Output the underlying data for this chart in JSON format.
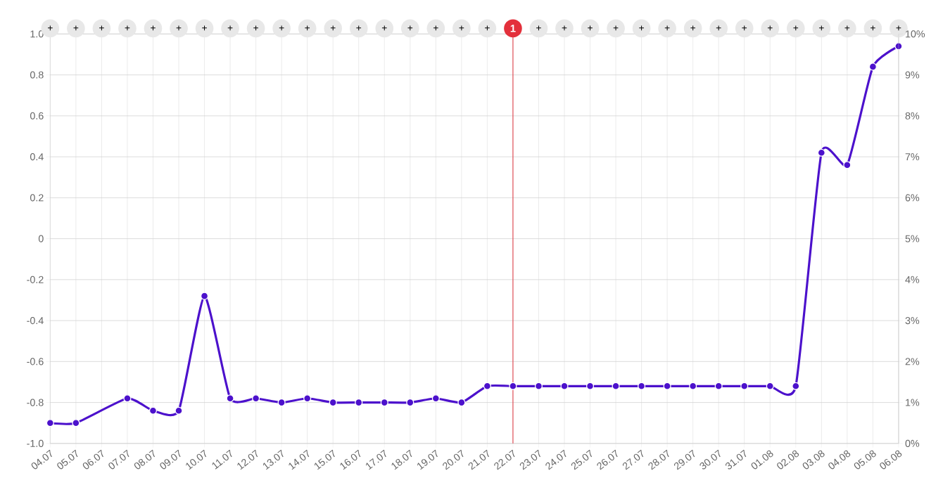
{
  "chart_data": {
    "type": "line",
    "categories": [
      "04.07",
      "05.07",
      "06.07",
      "07.07",
      "08.07",
      "09.07",
      "10.07",
      "11.07",
      "12.07",
      "13.07",
      "14.07",
      "15.07",
      "16.07",
      "17.07",
      "18.07",
      "19.07",
      "20.07",
      "21.07",
      "22.07",
      "23.07",
      "24.07",
      "25.07",
      "26.07",
      "27.07",
      "28.07",
      "29.07",
      "30.07",
      "31.07",
      "01.08",
      "02.08",
      "03.08",
      "04.08",
      "05.08",
      "06.08"
    ],
    "values": [
      -0.9,
      -0.9,
      null,
      -0.78,
      -0.84,
      -0.84,
      -0.28,
      -0.78,
      -0.78,
      -0.8,
      -0.78,
      -0.8,
      -0.8,
      -0.8,
      -0.8,
      -0.78,
      -0.8,
      -0.72,
      -0.72,
      -0.72,
      -0.72,
      -0.72,
      -0.72,
      -0.72,
      -0.72,
      -0.72,
      -0.72,
      -0.72,
      -0.72,
      -0.72,
      0.42,
      0.36,
      0.84,
      0.94
    ],
    "color": "#4c11cc",
    "marker": "circle",
    "line_style": "solid",
    "grid": true,
    "ylim": [
      -1,
      1
    ],
    "yticks": [
      {
        "value": -1,
        "label": "-1.0"
      },
      -0.8,
      -0.6,
      -0.4,
      -0.2,
      0,
      0.2,
      0.4,
      0.6,
      0.8,
      {
        "value": 1,
        "label": "1.0"
      }
    ],
    "y2lim": [
      0,
      10
    ],
    "y2ticks": [
      {
        "value": 0,
        "label": "0%"
      },
      {
        "value": 1,
        "label": "1%"
      },
      {
        "value": 2,
        "label": "2%"
      },
      {
        "value": 3,
        "label": "3%"
      },
      {
        "value": 4,
        "label": "4%"
      },
      {
        "value": 5,
        "label": "5%"
      },
      {
        "value": 6,
        "label": "6%"
      },
      {
        "value": 7,
        "label": "7%"
      },
      {
        "value": 8,
        "label": "8%"
      },
      {
        "value": 9,
        "label": "9%"
      },
      {
        "value": 10,
        "label": "10%"
      }
    ],
    "ref_lines": [
      {
        "axis": "x",
        "value": "22.07",
        "label": "1",
        "color": "#e3303b"
      }
    ],
    "annotations": [
      {
        "text": "+",
        "x": "04.07"
      },
      {
        "text": "+",
        "x": "05.07"
      },
      {
        "text": "+",
        "x": "06.07"
      },
      {
        "text": "+",
        "x": "07.07"
      },
      {
        "text": "+",
        "x": "08.07"
      },
      {
        "text": "+",
        "x": "09.07"
      },
      {
        "text": "+",
        "x": "10.07"
      },
      {
        "text": "+",
        "x": "11.07"
      },
      {
        "text": "+",
        "x": "12.07"
      },
      {
        "text": "+",
        "x": "13.07"
      },
      {
        "text": "+",
        "x": "14.07"
      },
      {
        "text": "+",
        "x": "15.07"
      },
      {
        "text": "+",
        "x": "16.07"
      },
      {
        "text": "+",
        "x": "17.07"
      },
      {
        "text": "+",
        "x": "18.07"
      },
      {
        "text": "+",
        "x": "19.07"
      },
      {
        "text": "+",
        "x": "20.07"
      },
      {
        "text": "+",
        "x": "21.07"
      },
      {
        "text": "+",
        "x": "23.07"
      },
      {
        "text": "+",
        "x": "24.07"
      },
      {
        "text": "+",
        "x": "25.07"
      },
      {
        "text": "+",
        "x": "26.07"
      },
      {
        "text": "+",
        "x": "27.07"
      },
      {
        "text": "+",
        "x": "28.07"
      },
      {
        "text": "+",
        "x": "29.07"
      },
      {
        "text": "+",
        "x": "30.07"
      },
      {
        "text": "+",
        "x": "31.07"
      },
      {
        "text": "+",
        "x": "01.08"
      },
      {
        "text": "+",
        "x": "02.08"
      },
      {
        "text": "+",
        "x": "03.08"
      },
      {
        "text": "+",
        "x": "04.08"
      },
      {
        "text": "+",
        "x": "05.08"
      },
      {
        "text": "+",
        "x": "06.08"
      }
    ]
  }
}
